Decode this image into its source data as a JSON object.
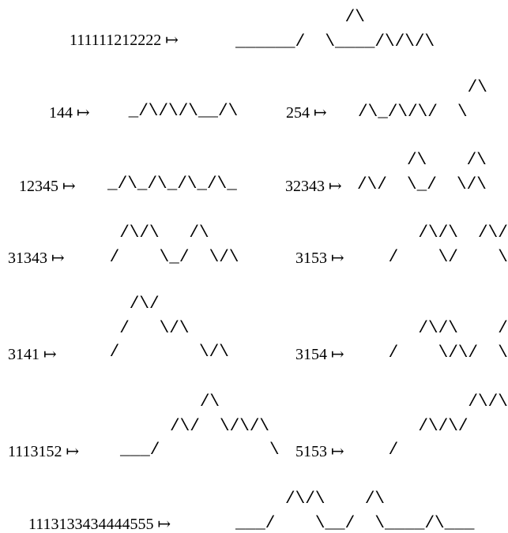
{
  "arrow": "↦",
  "items": [
    {
      "code": "111111212222",
      "path": "           /\\\n______/  \\____/\\/\\/\\"
    },
    {
      "code": "144",
      "path": " _/\\/\\/\\__/\\"
    },
    {
      "code": "254",
      "path": "           /\\\n/\\_/\\/\\/  \\"
    },
    {
      "code": "12345",
      "path": "_/\\_/\\_/\\_/\\_"
    },
    {
      "code": "32343",
      "path": "     /\\    /\\\n/\\/  \\_/  \\/\\"
    },
    {
      "code": "31343",
      "path": "  /\\/\\   /\\\n /    \\_/  \\/\\"
    },
    {
      "code": "3153",
      "path": "    /\\/\\  /\\/\\\n /    \\/    \\"
    },
    {
      "code": "3141",
      "path": "   /\\/\n  /   \\/\\\n /        \\/\\"
    },
    {
      "code": "3154",
      "path": "    /\\/\\    /\\\n /    \\/\\/  \\"
    },
    {
      "code": "1113152",
      "path": "        /\\\n     /\\/  \\/\\/\\\n___/           \\"
    },
    {
      "code": "5153",
      "path": "         /\\/\\\n    /\\/\\/    \\\n /            \\"
    },
    {
      "code": "1113133434444555",
      "path": "     /\\/\\    /\\\n___/    \\__/  \\____/\\___"
    }
  ]
}
